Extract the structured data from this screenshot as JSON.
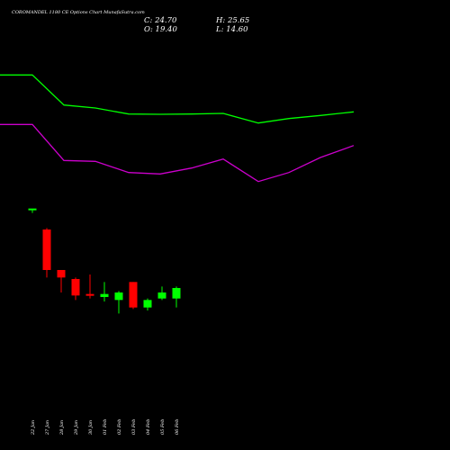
{
  "header": {
    "title": "COROMANDEL 1180 CE Options Chart MunafaSutra.com",
    "close_label": "C: 24.70",
    "high_label": "H: 25.65",
    "open_label": "O: 19.40",
    "low_label": "L: 14.60"
  },
  "chart_data": {
    "type": "candlestick",
    "title": "COROMANDEL 1180 CE Options Chart MunafaSutra.com",
    "background": "#000000",
    "colors": {
      "up": "#00ff00",
      "down": "#ff0000",
      "upper_band": "#00ff00",
      "lower_band": "#cc00cc"
    },
    "categories": [
      "22 Jan",
      "27 Jan",
      "28 Jan",
      "29 Jan",
      "30 Jan",
      "01 Feb",
      "02 Feb",
      "03 Feb",
      "04 Feb",
      "05 Feb",
      "06 Feb"
    ],
    "candles": [
      {
        "date": "22 Jan",
        "open": 62.0,
        "high": 62.0,
        "low": 61.0,
        "close": 62.5
      },
      {
        "date": "27 Jan",
        "open": 55.5,
        "high": 56.0,
        "low": 39.5,
        "close": 42.0
      },
      {
        "date": "28 Jan",
        "open": 42.0,
        "high": 42.0,
        "low": 34.5,
        "close": 39.5
      },
      {
        "date": "29 Jan",
        "open": 39.0,
        "high": 39.5,
        "low": 32.0,
        "close": 33.5
      },
      {
        "date": "30 Jan",
        "open": 34.0,
        "high": 40.5,
        "low": 32.5,
        "close": 33.5
      },
      {
        "date": "01 Feb",
        "open": 33.0,
        "high": 38.0,
        "low": 31.5,
        "close": 34.0
      },
      {
        "date": "02 Feb",
        "open": 32.0,
        "high": 35.0,
        "low": 27.5,
        "close": 34.5
      },
      {
        "date": "03 Feb",
        "open": 38.0,
        "high": 38.0,
        "low": 29.0,
        "close": 29.5
      },
      {
        "date": "04 Feb",
        "open": 29.5,
        "high": 32.5,
        "low": 28.5,
        "close": 32.0
      },
      {
        "date": "05 Feb",
        "open": 32.5,
        "high": 36.5,
        "low": 32.0,
        "close": 34.5
      },
      {
        "date": "06 Feb",
        "open": 32.5,
        "high": 36.5,
        "low": 29.5,
        "close": 36.0
      }
    ],
    "upper_band": [
      {
        "date": "21 Jan",
        "value": 107.0
      },
      {
        "date": "22 Jan",
        "value": 107.0
      },
      {
        "date": "27 Jan",
        "value": 97.0
      },
      {
        "date": "28 Jan",
        "value": 96.0
      },
      {
        "date": "29 Jan",
        "value": 94.0
      },
      {
        "date": "30 Jan",
        "value": 93.9
      },
      {
        "date": "01 Feb",
        "value": 94.0
      },
      {
        "date": "02 Feb",
        "value": 94.2
      },
      {
        "date": "03 Feb",
        "value": 91.0
      },
      {
        "date": "04 Feb",
        "value": 92.5
      },
      {
        "date": "05 Feb",
        "value": 93.5
      },
      {
        "date": "06 Feb",
        "value": 94.7
      }
    ],
    "lower_band": [
      {
        "date": "21 Jan",
        "value": 90.5
      },
      {
        "date": "22 Jan",
        "value": 90.5
      },
      {
        "date": "27 Jan",
        "value": 78.5
      },
      {
        "date": "28 Jan",
        "value": 78.2
      },
      {
        "date": "29 Jan",
        "value": 74.5
      },
      {
        "date": "30 Jan",
        "value": 74.0
      },
      {
        "date": "01 Feb",
        "value": 76.0
      },
      {
        "date": "02 Feb",
        "value": 79.0
      },
      {
        "date": "03 Feb",
        "value": 71.5
      },
      {
        "date": "04 Feb",
        "value": 74.5
      },
      {
        "date": "05 Feb",
        "value": 79.5
      },
      {
        "date": "06 Feb",
        "value": 83.5
      }
    ],
    "ylim": [
      0,
      120
    ],
    "grid": false,
    "legend": "none",
    "xlabel": "",
    "ylabel": ""
  }
}
